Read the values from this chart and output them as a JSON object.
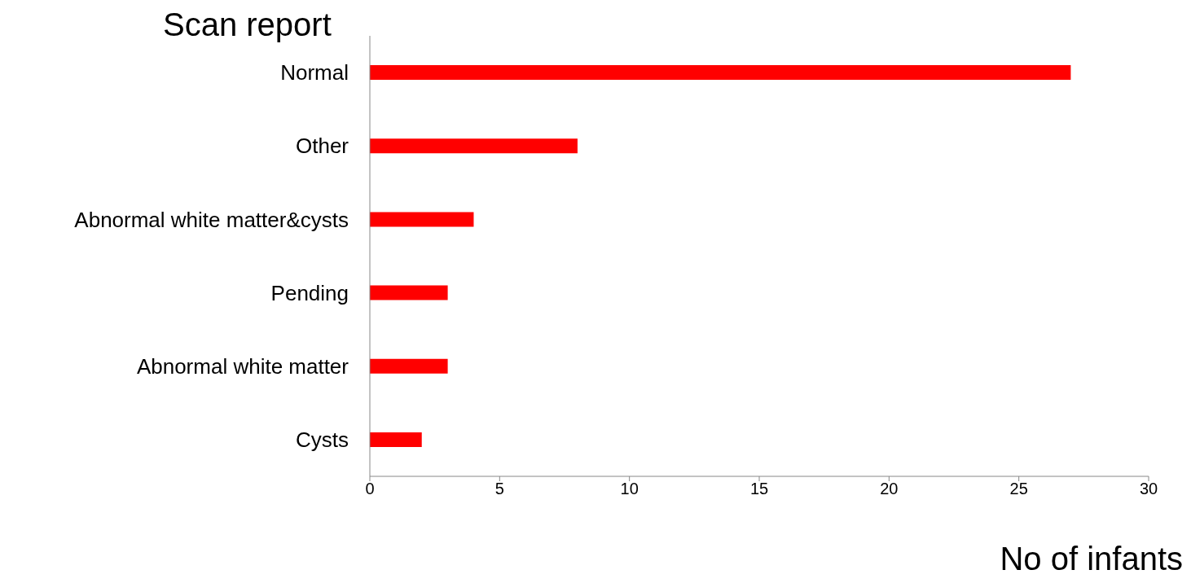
{
  "chart_data": {
    "type": "bar",
    "orientation": "horizontal",
    "ylabel": "Scan report",
    "xlabel": "No of infants",
    "categories": [
      "Normal",
      "Other",
      "Abnormal white matter&cysts",
      "Pending",
      "Abnormal white matter",
      "Cysts"
    ],
    "values": [
      27,
      8,
      4,
      3,
      3,
      2
    ],
    "color": "#ff0000",
    "xlim": [
      0,
      30
    ],
    "xticks": [
      0,
      5,
      10,
      15,
      20,
      25,
      30
    ],
    "grid": false,
    "legend": false
  }
}
